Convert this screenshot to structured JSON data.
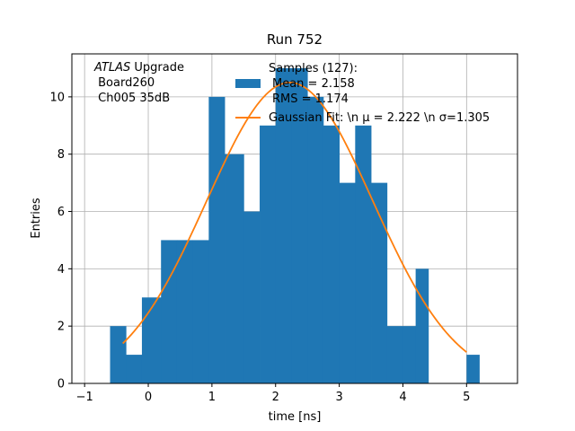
{
  "chart_data": {
    "type": "bar",
    "title": "Run 752",
    "xlabel": "time [ns]",
    "ylabel": "Entries",
    "xlim": [
      -1.2,
      5.8
    ],
    "ylim": [
      0,
      11.5
    ],
    "xticks": [
      -1,
      0,
      1,
      2,
      3,
      4,
      5
    ],
    "yticks": [
      0,
      2,
      4,
      6,
      8,
      10
    ],
    "grid": true,
    "annotation": {
      "italic": "ATLAS",
      "rest": " Upgrade",
      "line2": " Board260",
      "line3": " Ch005 35dB"
    },
    "histogram": {
      "name": "Samples (127):",
      "name_lines": [
        "Samples (127):",
        "Mean = 2.158",
        "RMS = 1.174"
      ],
      "color": "#1f77b4",
      "bin_edges": [
        -0.6,
        -0.35,
        -0.1,
        0.2,
        0.45,
        0.7,
        0.95,
        1.2,
        1.5,
        1.75,
        2.0,
        2.25,
        2.5,
        2.75,
        3.0,
        3.25,
        3.5,
        3.75,
        4.0,
        4.2,
        4.4,
        4.6,
        4.8,
        5.0,
        5.2
      ],
      "counts": [
        2,
        1,
        3,
        5,
        5,
        5,
        10,
        8,
        6,
        9,
        11,
        11,
        10,
        9,
        7,
        9,
        7,
        2,
        2,
        4,
        0,
        0,
        0,
        1
      ]
    },
    "fit": {
      "name": "Gaussian Fit: \\n μ = 2.222 \\n σ=1.305",
      "color": "#ff7f0e",
      "mu": 2.222,
      "sigma": 1.305,
      "amplitude": 10.5,
      "x_range": [
        -0.4,
        5.0
      ]
    },
    "legend_position": "top-center"
  }
}
